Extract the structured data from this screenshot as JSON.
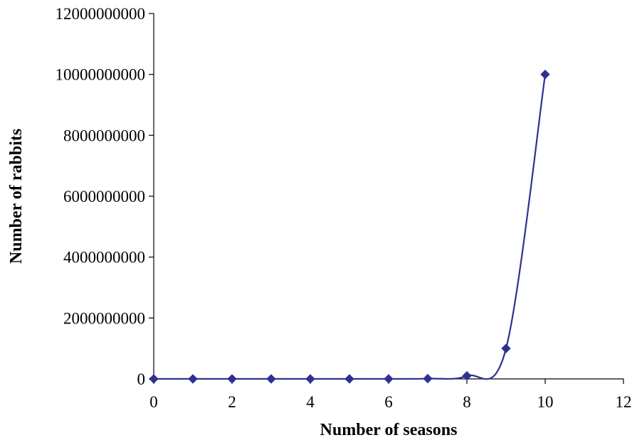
{
  "chart_data": {
    "type": "scatter",
    "title": "",
    "xlabel": "Number of seasons",
    "ylabel": "Number of  rabbits",
    "xlim": [
      0,
      12
    ],
    "ylim": [
      0,
      12000000000
    ],
    "x_ticks": [
      0,
      2,
      4,
      6,
      8,
      10,
      12
    ],
    "x_tick_labels": [
      "0",
      "2",
      "4",
      "6",
      "8",
      "10",
      "12"
    ],
    "y_ticks": [
      0,
      2000000000,
      4000000000,
      6000000000,
      8000000000,
      10000000000,
      12000000000
    ],
    "y_tick_labels": [
      "0",
      "2000000000",
      "4000000000",
      "6000000000",
      "8000000000",
      "10000000000",
      "12000000000"
    ],
    "grid": false,
    "legend": "none",
    "smoothed_line": true,
    "marker": "diamond",
    "series": [
      {
        "color": "#2E3192",
        "x": [
          0,
          1,
          2,
          3,
          4,
          5,
          6,
          7,
          8,
          9,
          10
        ],
        "y": [
          1,
          10,
          100,
          1000,
          10000,
          100000,
          1000000,
          10000000,
          100000000,
          1000000000,
          10000000000
        ]
      }
    ]
  }
}
